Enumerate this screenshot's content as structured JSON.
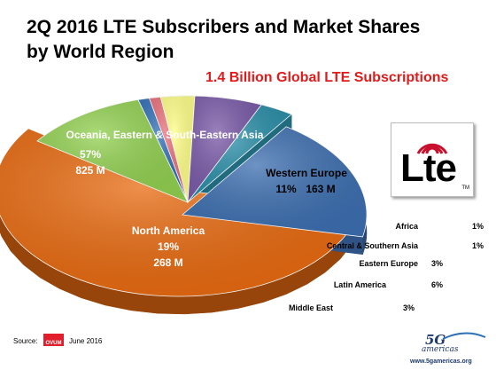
{
  "chart_data": {
    "type": "pie",
    "title": "2Q 2016 LTE Subscribers and Market Shares by World Region",
    "subtitle": "1.4 Billion Global LTE Subscriptions",
    "slices": [
      {
        "name": "Oceania, Eastern & South-Eastern Asia",
        "percent": 57,
        "pct_label": "57%",
        "value_label": "825 M",
        "color": "#e86a10"
      },
      {
        "name": "Western Europe",
        "percent": 11,
        "pct_label": "11%",
        "value_label": "163 M",
        "color": "#92d050"
      },
      {
        "name": "Africa",
        "percent": 1,
        "pct_label": "1%",
        "value_label": "",
        "color": "#2f6fb6"
      },
      {
        "name": "Central & Southern Asia",
        "percent": 1,
        "pct_label": "1%",
        "value_label": "",
        "color": "#e9707a"
      },
      {
        "name": "Eastern Europe",
        "percent": 3,
        "pct_label": "3%",
        "value_label": "",
        "color": "#ffff88"
      },
      {
        "name": "Latin America",
        "percent": 6,
        "pct_label": "6%",
        "value_label": "",
        "color": "#7a5aa8"
      },
      {
        "name": "Middle East",
        "percent": 3,
        "pct_label": "3%",
        "value_label": "",
        "color": "#2a8ea8"
      },
      {
        "name": "North America",
        "percent": 19,
        "pct_label": "19%",
        "value_label": "268 M",
        "color": "#3d6fb0"
      }
    ]
  },
  "source_label": "Source:",
  "source_brand": "OVUM",
  "source_date": "June 2016",
  "logo_text": "Lte",
  "logo_tm": "TM",
  "brand": {
    "name": "5G",
    "sub": "americas",
    "url": "www.5gamericas.org"
  }
}
